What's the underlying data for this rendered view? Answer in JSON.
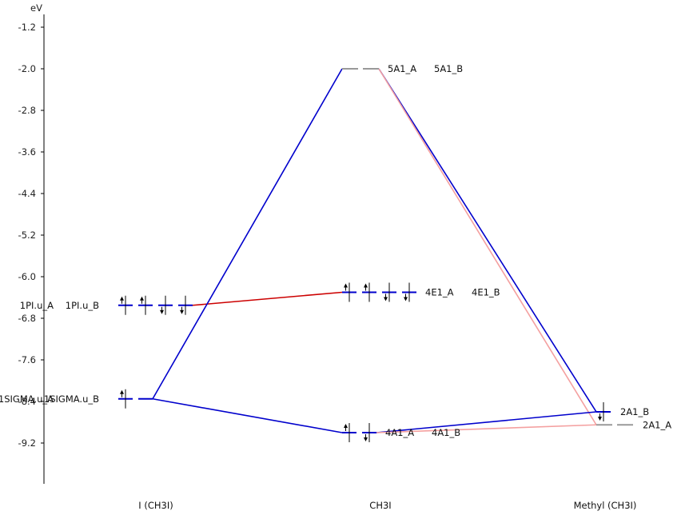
{
  "chart_data": {
    "type": "orbital-correlation-diagram",
    "ylabel": "eV",
    "ylim": [
      -10.9,
      -0.9
    ],
    "yticks": [
      -1.2,
      -2.0,
      -2.8,
      -3.6,
      -4.4,
      -5.2,
      -6.0,
      -6.8,
      -7.6,
      -8.4,
      -9.2
    ],
    "ytick_labels": [
      "-1.2",
      "-2.0",
      "-2.8",
      "-3.6",
      "-4.4",
      "-5.2",
      "-6.0",
      "-6.8",
      "-7.6",
      "-8.4",
      "-9.2"
    ],
    "columns": [
      {
        "id": "left",
        "label": "I (CH3I)"
      },
      {
        "id": "center",
        "label": "CH3I"
      },
      {
        "id": "right",
        "label": "Methyl (CH3I)"
      }
    ],
    "levels": [
      {
        "id": "L_1PI",
        "column": "left",
        "energy": -6.55,
        "labels": [
          "1PI.u_A",
          "1PI.u_B"
        ],
        "electrons": [
          "up",
          "up",
          "down",
          "down"
        ],
        "color": "#0000cc"
      },
      {
        "id": "L_1SIGMA",
        "column": "left",
        "energy": -8.35,
        "labels": [
          "1SIGMA.u_A",
          "1SIGMA.u_B"
        ],
        "electrons": [
          "up",
          null
        ],
        "color": "#0000cc"
      },
      {
        "id": "C_5A1",
        "column": "center",
        "energy": -2.0,
        "labels": [
          "5A1_A",
          "5A1_B"
        ],
        "electrons": [],
        "color": "#999999"
      },
      {
        "id": "C_4E1",
        "column": "center",
        "energy": -6.3,
        "labels": [
          "4E1_A",
          "4E1_B"
        ],
        "electrons": [
          "up",
          "up",
          "down",
          "down"
        ],
        "color": "#0000cc"
      },
      {
        "id": "C_4A1",
        "column": "center",
        "energy": -9.0,
        "labels": [
          "4A1_A",
          "4A1_B"
        ],
        "electrons": [
          "up",
          "down"
        ],
        "color": "#0000cc"
      },
      {
        "id": "R_2A1_B",
        "column": "right",
        "energy": -8.6,
        "labels": [
          "2A1_B"
        ],
        "electrons": [
          "down"
        ],
        "color": "#0000cc"
      },
      {
        "id": "R_2A1_A",
        "column": "right",
        "energy": -8.85,
        "labels": [
          "2A1_A"
        ],
        "electrons": [],
        "color": "#999999"
      }
    ],
    "connections": [
      {
        "from": "L_1PI",
        "to": "C_4E1",
        "color": "#cc0000"
      },
      {
        "from": "L_1SIGMA",
        "to": "C_5A1",
        "color": "#0000cc"
      },
      {
        "from": "L_1SIGMA",
        "to": "C_4A1",
        "color": "#0000cc"
      },
      {
        "from": "C_5A1",
        "to": "R_2A1_B",
        "color": "#0000cc"
      },
      {
        "from": "C_5A1",
        "to": "R_2A1_A",
        "color": "#f4a0a0"
      },
      {
        "from": "C_4A1",
        "to": "R_2A1_B",
        "color": "#0000cc"
      },
      {
        "from": "C_4A1",
        "to": "R_2A1_A",
        "color": "#f4a0a0"
      }
    ]
  }
}
